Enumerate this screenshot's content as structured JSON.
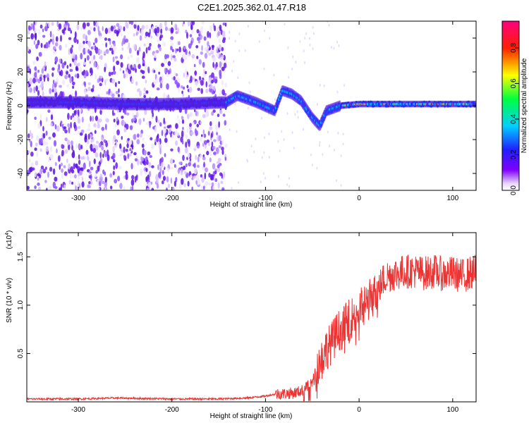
{
  "figure_title": "C2E1.2025.362.01.47.R18",
  "chart_data": [
    {
      "type": "heatmap",
      "xlabel": "Height of straight line (km)",
      "ylabel": "Frequency (Hz)",
      "xlim": [
        -355,
        125
      ],
      "ylim": [
        -50,
        50
      ],
      "xticks": [
        -300,
        -200,
        -100,
        0,
        100
      ],
      "xtick_labels": [
        "-300",
        "-200",
        "-100",
        "0",
        "100"
      ],
      "yticks": [
        -40,
        -20,
        0,
        20,
        40
      ],
      "ytick_labels": [
        "-40",
        "-20",
        "0",
        "20",
        "40"
      ],
      "colorbar": {
        "label": "Normalized spectral amplitude",
        "range": [
          0,
          0.95
        ],
        "ticks": [
          0.0,
          0.2,
          0.4,
          0.6,
          0.8
        ],
        "tick_labels": [
          "0.0",
          "0.2",
          "0.4",
          "0.6",
          "0.8"
        ],
        "colormap": "rainbow (white-violet-blue-cyan-green-yellow-red-pink)"
      },
      "noise_region": {
        "x_range": [
          -355,
          -142
        ],
        "y_range": [
          -50,
          50
        ]
      },
      "signal_ridge": [
        {
          "x": -355,
          "y": 2
        },
        {
          "x": -300,
          "y": 2
        },
        {
          "x": -250,
          "y": 1
        },
        {
          "x": -200,
          "y": 1
        },
        {
          "x": -142,
          "y": 2
        },
        {
          "x": -130,
          "y": 6
        },
        {
          "x": -110,
          "y": 2
        },
        {
          "x": -90,
          "y": -3
        },
        {
          "x": -82,
          "y": 9
        },
        {
          "x": -72,
          "y": 7
        },
        {
          "x": -62,
          "y": 3
        },
        {
          "x": -50,
          "y": -7
        },
        {
          "x": -42,
          "y": -12
        },
        {
          "x": -35,
          "y": -3
        },
        {
          "x": -20,
          "y": 0
        },
        {
          "x": 0,
          "y": 1
        },
        {
          "x": 50,
          "y": 1
        },
        {
          "x": 125,
          "y": 1
        }
      ]
    },
    {
      "type": "line",
      "xlabel": "Height of straight line (km)",
      "ylabel": "SNR (10 * v/v)",
      "yscale_label": "(x10",
      "yscale_exponent": "4",
      "xlim": [
        -355,
        125
      ],
      "ylim": [
        0,
        1.75
      ],
      "xticks": [
        -300,
        -200,
        -100,
        0,
        100
      ],
      "xtick_labels": [
        "-300",
        "-200",
        "-100",
        "0",
        "100"
      ],
      "yticks": [
        0.5,
        1.0,
        1.5
      ],
      "ytick_labels": [
        "0.5",
        "1.0",
        "1.5"
      ],
      "color": "#ee3333",
      "series": [
        {
          "x": [
            -355,
            -300,
            -260,
            -200,
            -150,
            -120,
            -100,
            -90,
            -70,
            -60,
            -50,
            -45,
            -40,
            -35,
            -30,
            -25,
            -20,
            -10,
            0,
            10,
            20,
            25,
            30,
            40,
            50,
            60,
            70,
            80,
            90,
            100,
            110,
            125
          ],
          "y": [
            0.03,
            0.03,
            0.04,
            0.03,
            0.03,
            0.04,
            0.06,
            0.08,
            0.09,
            0.12,
            0.2,
            0.35,
            0.45,
            0.55,
            0.6,
            0.7,
            0.75,
            0.85,
            0.95,
            1.05,
            1.15,
            1.25,
            1.3,
            1.33,
            1.35,
            1.35,
            1.33,
            1.35,
            1.32,
            1.33,
            1.3,
            1.35
          ]
        }
      ]
    }
  ]
}
